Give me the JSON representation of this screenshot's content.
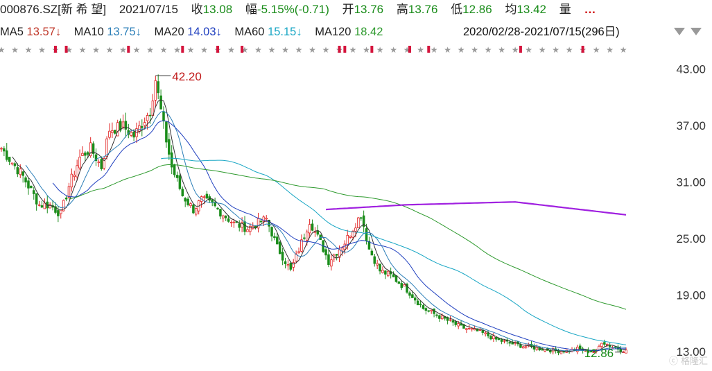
{
  "header": {
    "code": "000876.SZ[新 希 望]",
    "date": "2021/07/15",
    "close_label": "收",
    "close": "13.08",
    "change_label": "幅",
    "change": "-5.15%(-0.71)",
    "open_label": "开",
    "open": "13.76",
    "high_label": "高",
    "high": "13.76",
    "low_label": "低",
    "low": "12.86",
    "avg_label": "均",
    "avg": "13.42",
    "volume_label": "量",
    "more": "…"
  },
  "ma_legend": [
    {
      "label": "MA5",
      "value": "13.57↓",
      "color": "#c0392b"
    },
    {
      "label": "MA10",
      "value": "13.75↓",
      "color": "#2c7fb8"
    },
    {
      "label": "MA20",
      "value": "14.03↓",
      "color": "#1f3fbf"
    },
    {
      "label": "MA60",
      "value": "15.15↓",
      "color": "#18a6c4"
    },
    {
      "label": "MA120",
      "value": "18.42",
      "color": "#2e9a2e"
    }
  ],
  "ma_overlap_text": "2020/02/28-2021/07/15(296日)",
  "colors": {
    "up": "#e02020",
    "down": "#1a8c1a",
    "ma5": "#333333",
    "ma10": "#2c7fb8",
    "ma20": "#1f3fbf",
    "ma60": "#18a6c4",
    "ma120": "#2e9a2e",
    "ma250": "#a020e0"
  },
  "watermark": "格隆汇",
  "chart_data": {
    "type": "line",
    "ylim": [
      12.4,
      44.2
    ],
    "y_ticks": [
      "43.00",
      "37.00",
      "31.00",
      "25.00",
      "19.00",
      "13.00"
    ],
    "y_tick_values": [
      43,
      37,
      31,
      25,
      19,
      13
    ],
    "n_periods": 296,
    "high_marker": {
      "value": "42.20",
      "index": 57
    },
    "low_marker": {
      "value": "12.86",
      "index": 293
    },
    "close_anchors": [
      [
        0,
        34.5
      ],
      [
        8,
        31.5
      ],
      [
        14,
        28.5
      ],
      [
        18,
        28.5
      ],
      [
        22,
        27.5
      ],
      [
        25,
        30.5
      ],
      [
        29,
        33.5
      ],
      [
        33,
        34.5
      ],
      [
        37,
        32.5
      ],
      [
        40,
        36.5
      ],
      [
        45,
        36.8
      ],
      [
        49,
        35.8
      ],
      [
        55,
        38.5
      ],
      [
        57,
        41.8
      ],
      [
        60,
        36.8
      ],
      [
        63,
        32.5
      ],
      [
        67,
        29.5
      ],
      [
        71,
        28.0
      ],
      [
        74,
        29.0
      ],
      [
        78,
        28.5
      ],
      [
        82,
        27.5
      ],
      [
        86,
        26.5
      ],
      [
        91,
        26.0
      ],
      [
        98,
        27.0
      ],
      [
        102,
        24.0
      ],
      [
        107,
        21.5
      ],
      [
        111,
        24.5
      ],
      [
        114,
        26.8
      ],
      [
        118,
        24.5
      ],
      [
        121,
        22.5
      ],
      [
        124,
        23.5
      ],
      [
        127,
        24.5
      ],
      [
        131,
        26.5
      ],
      [
        133,
        27.5
      ],
      [
        136,
        23.8
      ],
      [
        140,
        21.5
      ],
      [
        144,
        21.0
      ],
      [
        150,
        19.5
      ],
      [
        156,
        17.5
      ],
      [
        163,
        16.5
      ],
      [
        170,
        15.5
      ],
      [
        177,
        15.0
      ],
      [
        183,
        14.2
      ],
      [
        188,
        13.8
      ],
      [
        193,
        13.5
      ],
      [
        200,
        13.2
      ],
      [
        205,
        13.0
      ],
      [
        210,
        13.0
      ],
      [
        213,
        13.2
      ],
      [
        216,
        13.0
      ],
      [
        220,
        12.9
      ],
      [
        222,
        14.0
      ],
      [
        226,
        13.4
      ],
      [
        230,
        13.08
      ]
    ],
    "series": [
      {
        "name": "MA5"
      },
      {
        "name": "MA10"
      },
      {
        "name": "MA20"
      },
      {
        "name": "MA60"
      },
      {
        "name": "MA120"
      },
      {
        "name": "",
        "values_anchors": [
          [
            0,
            28.0
          ],
          [
            30,
            28.5
          ],
          [
            70,
            28.8
          ],
          [
            130,
            26.8
          ],
          [
            183,
            24.0
          ]
        ]
      }
    ]
  }
}
